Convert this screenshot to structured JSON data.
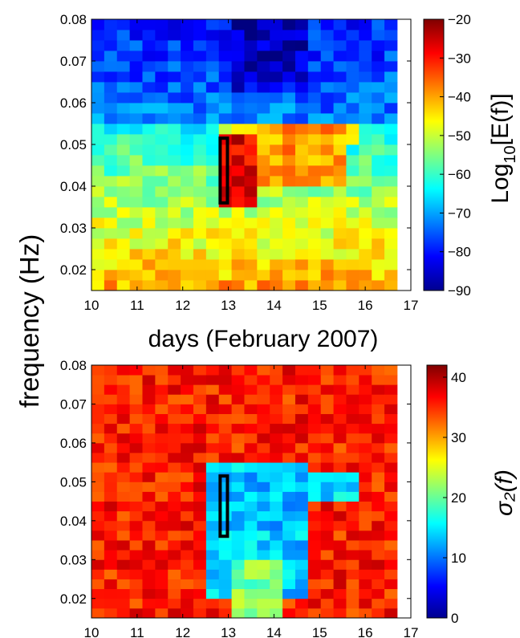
{
  "figure": {
    "shared_ylabel": "frequency (Hz)"
  },
  "chart_data": [
    {
      "type": "heatmap",
      "title": "",
      "xlabel": "days (February 2007)",
      "ylabel": "frequency (Hz)",
      "xlim": [
        10,
        17
      ],
      "ylim": [
        0.015,
        0.08
      ],
      "x_ticks": [
        "10",
        "11",
        "12",
        "13",
        "14",
        "15",
        "16",
        "17"
      ],
      "y_ticks": [
        "0.02",
        "0.03",
        "0.04",
        "0.05",
        "0.06",
        "0.07",
        "0.08"
      ],
      "grid": false,
      "data_x_range": [
        10,
        16.7
      ],
      "x_bins": 24,
      "y_bins": 26,
      "colorbar": {
        "label_base": "Log",
        "label_sub": "10",
        "label_tail": "[E(f)]",
        "ticks": [
          "−20",
          "−30",
          "−40",
          "−50",
          "−60",
          "−70",
          "−80",
          "−90"
        ],
        "range": [
          -90,
          -20
        ],
        "colormap": "jet"
      },
      "highlight_box": {
        "x": [
          12.82,
          12.98
        ],
        "y": [
          0.036,
          0.0515
        ],
        "color": "#000000"
      },
      "description_of_values": "approximate log10 spectral energy by day and frequency"
    },
    {
      "type": "heatmap",
      "title": "",
      "xlabel": "",
      "ylabel": "frequency (Hz)",
      "xlim": [
        10,
        17
      ],
      "ylim": [
        0.015,
        0.08
      ],
      "x_ticks": [
        "10",
        "11",
        "12",
        "13",
        "14",
        "15",
        "16",
        "17"
      ],
      "y_ticks": [
        "0.02",
        "0.03",
        "0.04",
        "0.05",
        "0.06",
        "0.07",
        "0.08"
      ],
      "grid": false,
      "data_x_range": [
        10,
        16.7
      ],
      "x_bins": 24,
      "y_bins": 26,
      "colorbar": {
        "label": "σ₂(f)",
        "ticks": [
          "40",
          "30",
          "20",
          "10",
          "0"
        ],
        "range": [
          0,
          42
        ],
        "colormap": "jet"
      },
      "highlight_box": {
        "x": [
          12.82,
          12.98
        ],
        "y": [
          0.036,
          0.0515
        ],
        "color": "#000000"
      },
      "description_of_values": "approximate sigma_2 by day and frequency"
    }
  ]
}
